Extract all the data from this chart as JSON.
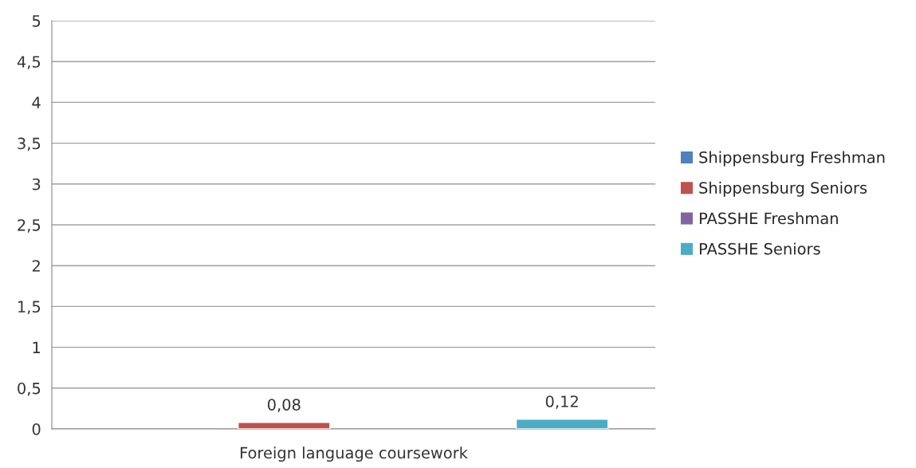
{
  "chart_data": {
    "type": "bar",
    "categories": [
      "Foreign language coursework"
    ],
    "series": [
      {
        "name": "Shippensburg Freshman",
        "color": "#4f81bd",
        "values": [
          null
        ],
        "value_labels": [
          null
        ]
      },
      {
        "name": "Shippensburg Seniors",
        "color": "#c0504d",
        "values": [
          0.08
        ],
        "value_labels": [
          "0,08"
        ]
      },
      {
        "name": "PASSHE Freshman",
        "color": "#8064a2",
        "values": [
          null
        ],
        "value_labels": [
          null
        ]
      },
      {
        "name": "PASSHE Seniors",
        "color": "#4bacc6",
        "values": [
          0.12
        ],
        "value_labels": [
          "0,12"
        ]
      }
    ],
    "ylim": [
      0,
      5
    ],
    "yticks": [
      0,
      {
        "value": 0.5,
        "label": "0,5"
      },
      1,
      {
        "value": 1.5,
        "label": "1,5"
      },
      2,
      {
        "value": 2.5,
        "label": "2,5"
      },
      3,
      {
        "value": 3.5,
        "label": "3,5"
      },
      4,
      {
        "value": 4.5,
        "label": "4,5"
      },
      5
    ],
    "grid": "y",
    "legend": "right"
  }
}
